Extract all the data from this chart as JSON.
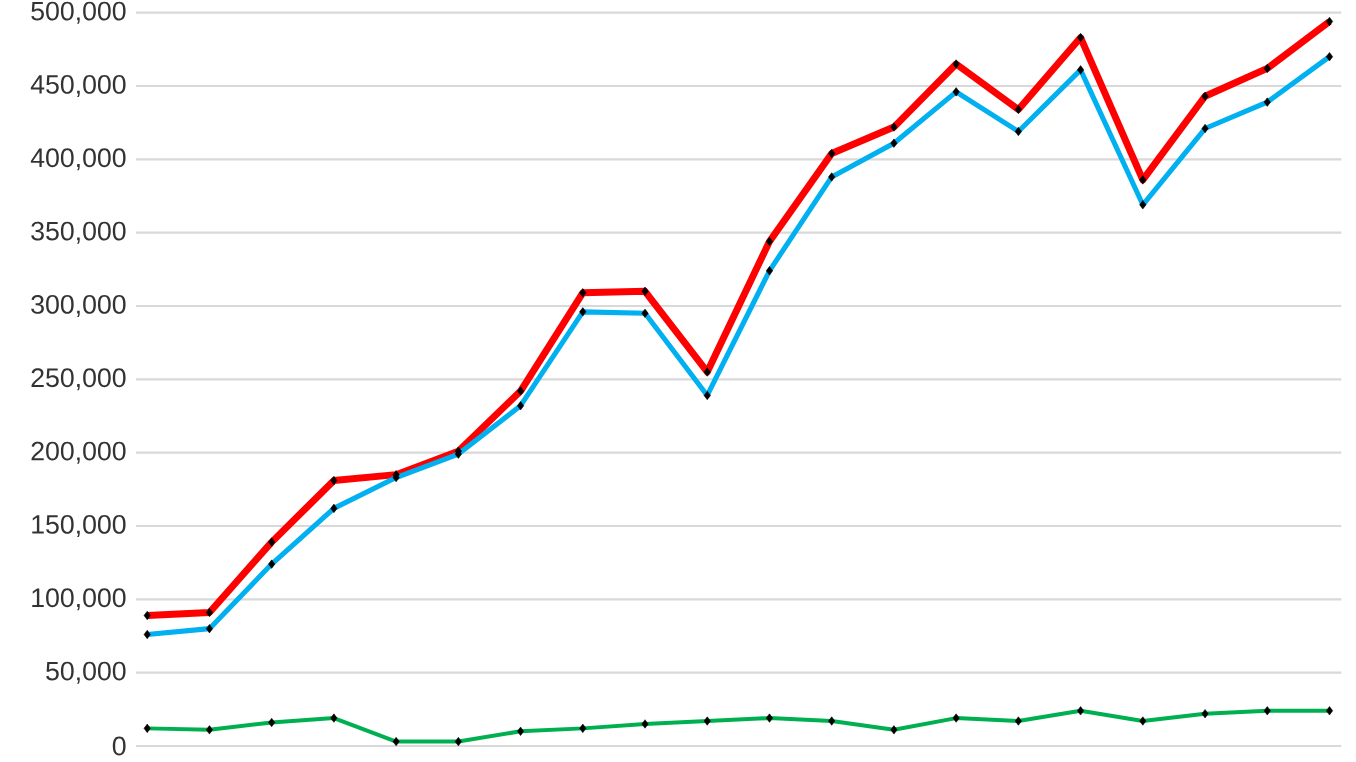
{
  "chart_data": {
    "type": "line",
    "categories": [
      null,
      null,
      null,
      null,
      null,
      null,
      null,
      null,
      null,
      null,
      null,
      null,
      null,
      null,
      null,
      null,
      null,
      null,
      null,
      null
    ],
    "ylim": [
      0,
      500000
    ],
    "yticks": [
      {
        "value": 0,
        "label": "0"
      },
      {
        "value": 50000,
        "label": "50,000"
      },
      {
        "value": 100000,
        "label": "100,000"
      },
      {
        "value": 150000,
        "label": "150,000"
      },
      {
        "value": 200000,
        "label": "200,000"
      },
      {
        "value": 250000,
        "label": "250,000"
      },
      {
        "value": 300000,
        "label": "300,000"
      },
      {
        "value": 350000,
        "label": "350,000"
      },
      {
        "value": 400000,
        "label": "400,000"
      },
      {
        "value": 450000,
        "label": "450,000"
      },
      {
        "value": 500000,
        "label": "500,000"
      }
    ],
    "tick_labels": "y",
    "grid": "y",
    "marker": "diamond",
    "line_style": "solid",
    "series": [
      {
        "color": "#ff0000",
        "values": [
          89000,
          91000,
          139000,
          181000,
          185000,
          201000,
          242000,
          309000,
          310000,
          255000,
          344000,
          404000,
          422000,
          465000,
          434000,
          483000,
          386000,
          443000,
          462000,
          494000
        ]
      },
      {
        "color": "#00b0f0",
        "values": [
          76000,
          80000,
          124000,
          162000,
          183000,
          199000,
          232000,
          296000,
          295000,
          239000,
          324000,
          388000,
          411000,
          446000,
          419000,
          461000,
          369000,
          421000,
          439000,
          470000
        ]
      },
      {
        "color": "#00b050",
        "values": [
          12000,
          11000,
          16000,
          19000,
          3000,
          3000,
          10000,
          12000,
          15000,
          17000,
          19000,
          17000,
          11000,
          19000,
          17000,
          24000,
          17000,
          22000,
          24000,
          24000
        ]
      }
    ]
  }
}
